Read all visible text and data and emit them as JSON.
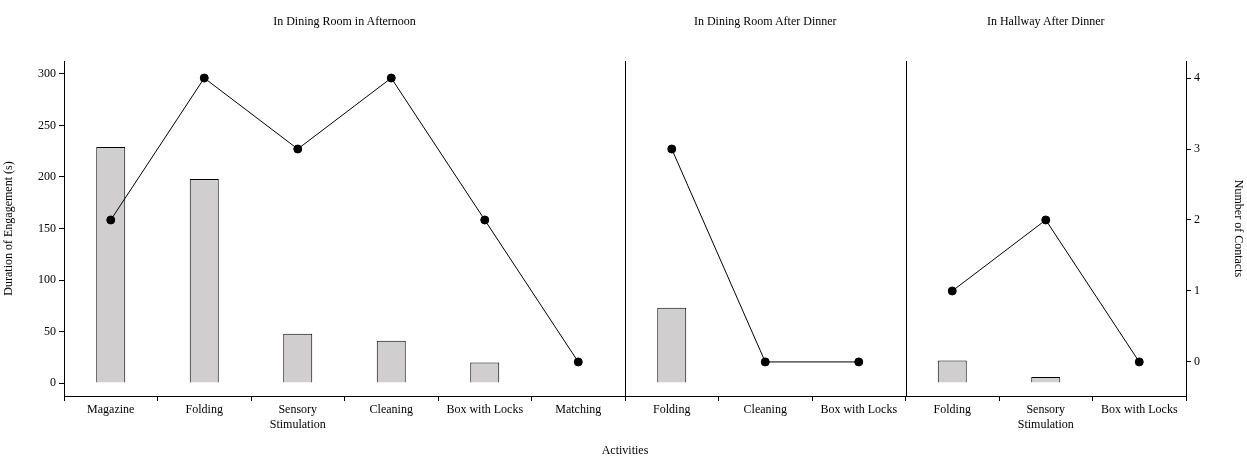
{
  "chart_data": {
    "type": "bar",
    "xlabel": "Activities",
    "ylabel": "Duration of Engagement (s)",
    "y2label": "Number of Contacts",
    "categories": [
      "Magazine",
      "Folding",
      "Sensory Stimulation",
      "Cleaning",
      "Box with Locks",
      "Matching",
      "Folding",
      "Cleaning",
      "Box with Locks",
      "Folding",
      "Sensory Stimulation",
      "Box with Locks"
    ],
    "series": [
      {
        "color": "#d0cece",
        "axis": "y",
        "values": [
          229,
          198,
          48,
          41,
          20,
          0,
          73,
          0,
          0,
          22,
          6,
          0
        ]
      },
      {
        "type": "line",
        "color": "#000000",
        "axis": "y2",
        "values": [
          2,
          4,
          3,
          4,
          2,
          0,
          null,
          null,
          null,
          null,
          null,
          null
        ]
      },
      {
        "type": "line",
        "color": "#000000",
        "axis": "y2",
        "values": [
          null,
          null,
          null,
          null,
          null,
          null,
          3,
          0,
          0,
          null,
          null,
          null
        ]
      },
      {
        "type": "line",
        "color": "#000000",
        "axis": "y2",
        "values": [
          null,
          null,
          null,
          null,
          null,
          null,
          null,
          null,
          null,
          1,
          2,
          0
        ]
      }
    ],
    "annotations": [
      "In Dining Room in Afternoon",
      "In Dining Room After Dinner",
      "In Hallway After Dinner"
    ],
    "ylim": [
      -12.5,
      312.5
    ],
    "yticks": [
      0,
      50,
      100,
      150,
      200,
      250,
      300
    ],
    "y2lim": [
      -0.48,
      4.24
    ],
    "y2ticks": [
      0,
      1,
      2,
      3,
      4
    ],
    "grid": false,
    "legend": false,
    "marker": "circle",
    "line_style": "solid"
  }
}
